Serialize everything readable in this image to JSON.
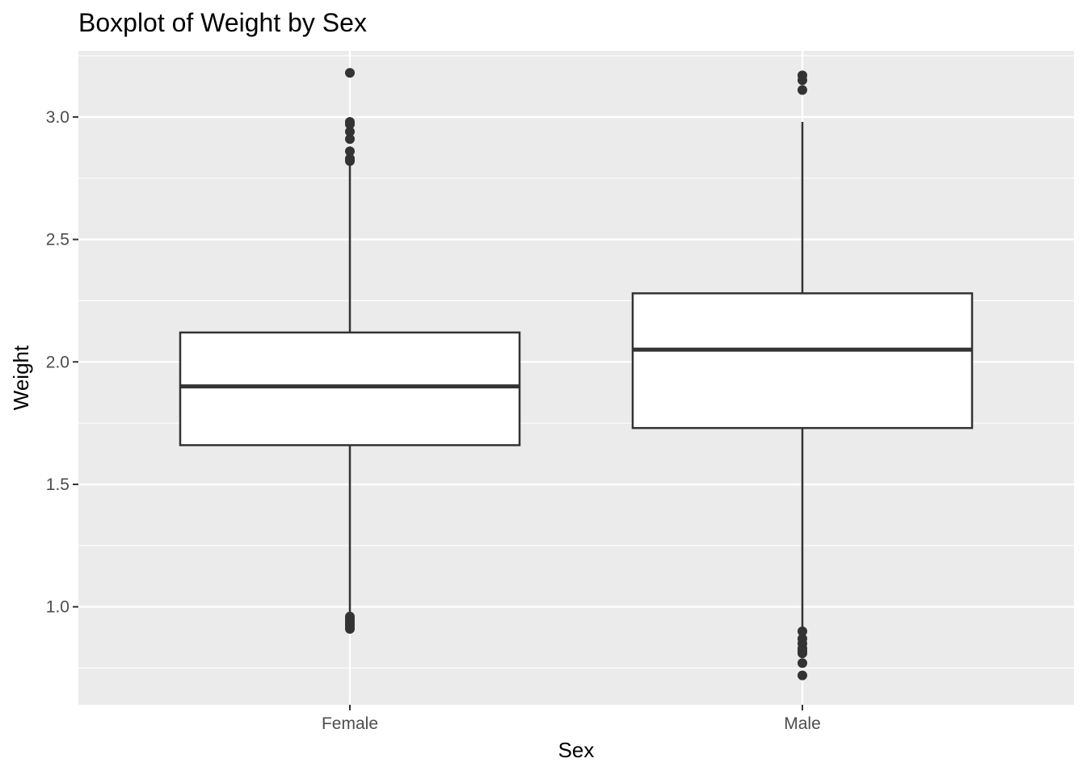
{
  "chart_data": {
    "type": "boxplot",
    "title": "Boxplot of Weight by Sex",
    "xlabel": "Sex",
    "ylabel": "Weight",
    "categories": [
      "Female",
      "Male"
    ],
    "ylim": [
      0.6,
      3.27
    ],
    "y_ticks": [
      1.0,
      1.5,
      2.0,
      2.5,
      3.0
    ],
    "y_tick_labels": [
      "1.0",
      "1.5",
      "2.0",
      "2.5",
      "3.0"
    ],
    "grid": true,
    "colors": {
      "panel_background": "#ebebeb",
      "grid": "#ffffff",
      "box_fill": "#ffffff",
      "box_stroke": "#333333",
      "tick_text": "#4d4d4d"
    },
    "boxes": [
      {
        "category": "Female",
        "whisker_low": 0.97,
        "q1": 1.66,
        "median": 1.9,
        "q3": 2.12,
        "whisker_high": 2.81,
        "outliers": [
          0.91,
          0.92,
          0.93,
          0.94,
          0.95,
          0.96,
          2.82,
          2.83,
          2.86,
          2.91,
          2.94,
          2.97,
          2.98,
          3.18
        ]
      },
      {
        "category": "Male",
        "whisker_low": 0.91,
        "q1": 1.73,
        "median": 2.05,
        "q3": 2.28,
        "whisker_high": 2.98,
        "outliers": [
          0.72,
          0.77,
          0.81,
          0.82,
          0.83,
          0.85,
          0.87,
          0.9,
          3.11,
          3.15,
          3.17
        ]
      }
    ]
  }
}
